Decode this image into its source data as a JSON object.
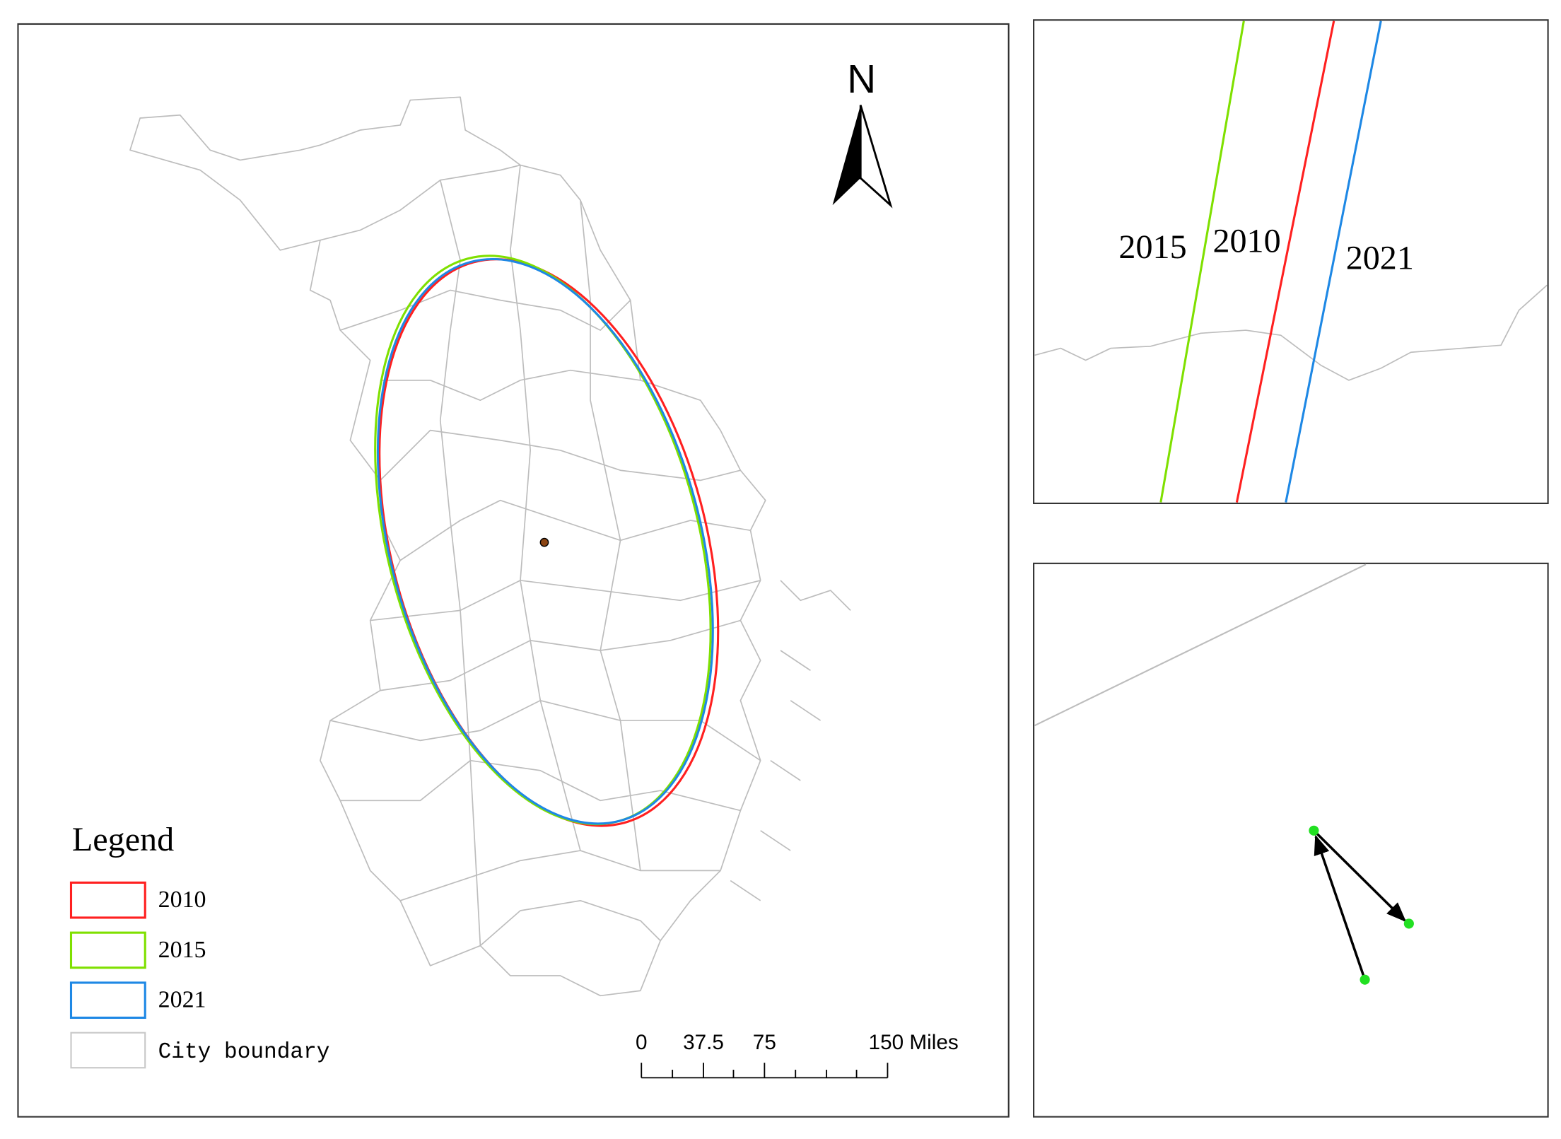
{
  "main_map": {
    "north_arrow": {
      "label": "N"
    },
    "legend": {
      "title": "Legend",
      "items": [
        "2010",
        "2015",
        "2021",
        "City boundary"
      ]
    },
    "scale_bar": {
      "labels": [
        "0",
        "37.5",
        "75",
        "150 Miles"
      ]
    }
  },
  "inset_top": {
    "labels": [
      "2015",
      "2010",
      "2021"
    ]
  }
}
